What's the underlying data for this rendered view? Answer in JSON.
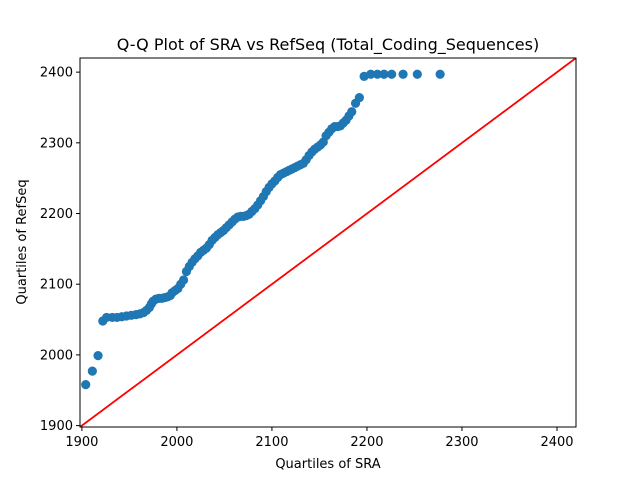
{
  "chart_data": {
    "type": "scatter",
    "title": "Q-Q Plot of SRA vs RefSeq (Total_Coding_Sequences)",
    "xlabel": "Quartiles of SRA",
    "ylabel": "Quartiles of RefSeq",
    "xlim": [
      1898,
      2420
    ],
    "ylim": [
      1898,
      2420
    ],
    "x_ticks": [
      1900,
      2000,
      2100,
      2200,
      2300,
      2400
    ],
    "y_ticks": [
      1900,
      2000,
      2100,
      2200,
      2300,
      2400
    ],
    "grid": false,
    "legend": "none",
    "marker_color": "#1f77b4",
    "reference_line": {
      "from": [
        1898,
        1898
      ],
      "to": [
        2420,
        2420
      ],
      "color": "#ff0000"
    },
    "series": [
      {
        "x": [
          1904,
          1911,
          1917,
          1922,
          1926,
          1932,
          1937,
          1942,
          1947,
          1952,
          1957,
          1961,
          1965,
          1968,
          1971,
          1973,
          1975,
          1978,
          1981,
          1984,
          1987,
          1990,
          1993,
          1995,
          1998,
          2001,
          2004,
          2007,
          2010,
          2013,
          2016,
          2019,
          2022,
          2025,
          2028,
          2031,
          2034,
          2037,
          2040,
          2043,
          2046,
          2049,
          2052,
          2055,
          2058,
          2061,
          2064,
          2067,
          2070,
          2073,
          2076,
          2079,
          2082,
          2085,
          2088,
          2091,
          2094,
          2097,
          2100,
          2103,
          2106,
          2109,
          2112,
          2115,
          2118,
          2121,
          2124,
          2127,
          2130,
          2133,
          2136,
          2139,
          2142,
          2145,
          2148,
          2151,
          2154,
          2157,
          2160,
          2163,
          2166,
          2169,
          2172,
          2175,
          2178,
          2181,
          2184,
          2188,
          2192,
          2197,
          2204,
          2211,
          2218,
          2226,
          2238,
          2253,
          2277
        ],
        "y": [
          1958,
          1977,
          1999,
          2048,
          2053,
          2053,
          2053,
          2054,
          2055,
          2056,
          2057,
          2058,
          2060,
          2063,
          2067,
          2072,
          2076,
          2079,
          2080,
          2080,
          2081,
          2082,
          2084,
          2088,
          2091,
          2094,
          2100,
          2106,
          2118,
          2125,
          2131,
          2136,
          2140,
          2145,
          2148,
          2151,
          2156,
          2162,
          2166,
          2170,
          2173,
          2176,
          2180,
          2184,
          2188,
          2192,
          2195,
          2196,
          2196,
          2197,
          2199,
          2203,
          2207,
          2212,
          2218,
          2224,
          2231,
          2237,
          2242,
          2246,
          2251,
          2255,
          2257,
          2259,
          2261,
          2263,
          2265,
          2267,
          2269,
          2271,
          2276,
          2282,
          2287,
          2291,
          2294,
          2297,
          2301,
          2310,
          2315,
          2320,
          2323,
          2323,
          2324,
          2328,
          2332,
          2338,
          2344,
          2356,
          2364,
          2394,
          2397,
          2397,
          2397,
          2397,
          2397,
          2397,
          2397
        ]
      }
    ]
  }
}
